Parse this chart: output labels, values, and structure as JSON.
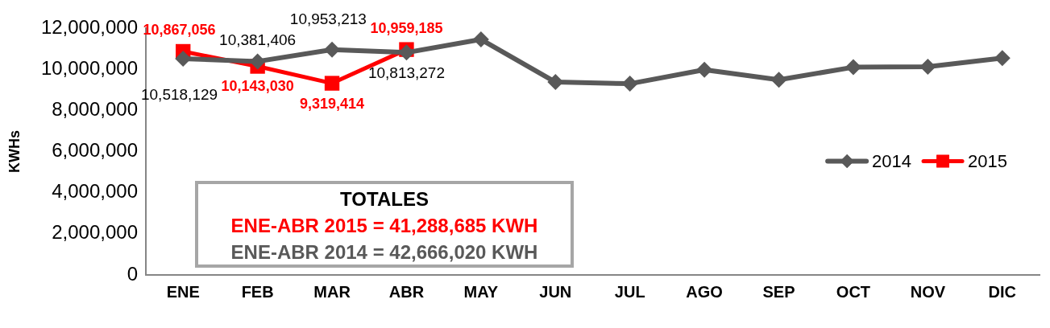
{
  "chart_data": {
    "type": "line",
    "ylabel": "KWHs",
    "categories": [
      "ENE",
      "FEB",
      "MAR",
      "ABR",
      "MAY",
      "JUN",
      "JUL",
      "AGO",
      "SEP",
      "OCT",
      "NOV",
      "DIC"
    ],
    "series": [
      {
        "name": "2014",
        "color": "#595959",
        "marker": "diamond",
        "values": [
          10518129,
          10381406,
          10953213,
          10813272,
          11450000,
          9380000,
          9300000,
          9980000,
          9490000,
          10100000,
          10120000,
          10540000
        ],
        "value_labels": [
          "10,518,129",
          "10,381,406",
          "10,953,213",
          "10,813,272",
          null,
          null,
          null,
          null,
          null,
          null,
          null,
          null
        ]
      },
      {
        "name": "2015",
        "color": "#ff0000",
        "marker": "square",
        "values": [
          10867056,
          10143030,
          9319414,
          10959185,
          null,
          null,
          null,
          null,
          null,
          null,
          null,
          null
        ],
        "value_labels": [
          "10,867,056",
          "10,143,030",
          "9,319,414",
          "10,959,185",
          null,
          null,
          null,
          null,
          null,
          null,
          null,
          null
        ]
      }
    ],
    "ylim": [
      0,
      12000000
    ],
    "yticks": [
      0,
      {
        "value": 2000000,
        "label": "2,000,000"
      },
      {
        "value": 4000000,
        "label": "4,000,000"
      },
      {
        "value": 6000000,
        "label": "6,000,000"
      },
      {
        "value": 8000000,
        "label": "8,000,000"
      },
      {
        "value": 10000000,
        "label": "10,000,000"
      },
      {
        "value": 12000000,
        "label": "12,000,000"
      }
    ],
    "legend": "right",
    "annotations": [
      "TOTALES",
      "ENE-ABR 2015 = 41,288,685 KWH",
      "ENE-ABR 2014 = 42,666,020 KWH"
    ]
  }
}
